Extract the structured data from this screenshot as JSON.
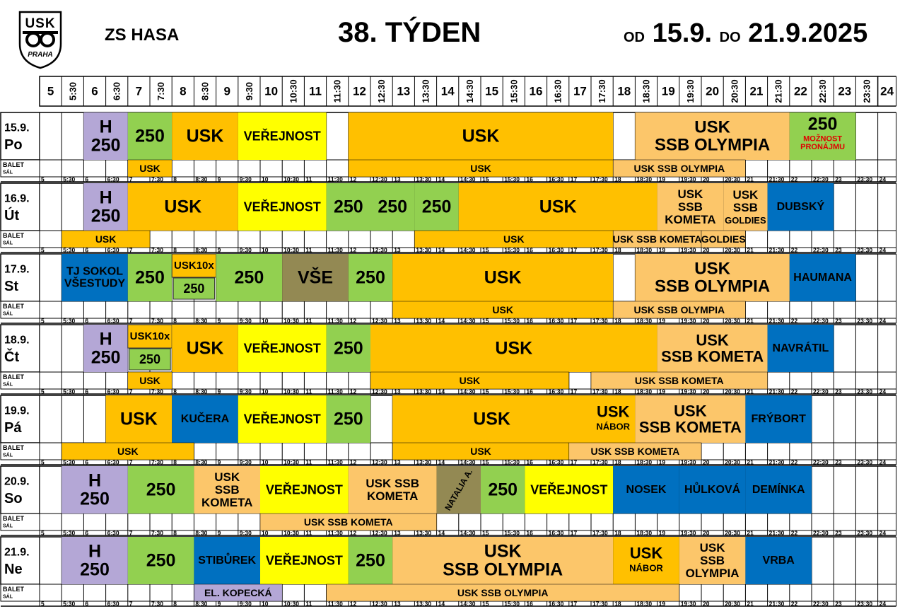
{
  "header": {
    "logo_text": "USK",
    "logo_city": "PRAHA",
    "venue": "ZS HASA",
    "week": "38. TÝDEN",
    "range_from_word": "OD",
    "range_from": "15.9.",
    "range_to_word": "DO",
    "range_to": "21.9.2025"
  },
  "time_labels": [
    "5",
    "5:30",
    "6",
    "6:30",
    "7",
    "7:30",
    "8",
    "8:30",
    "9",
    "9:30",
    "10",
    "10:30",
    "11",
    "11:30",
    "12",
    "12:30",
    "13",
    "13:30",
    "14",
    "14:30",
    "15",
    "15:30",
    "16",
    "16:30",
    "17",
    "17:30",
    "18",
    "18:30",
    "19",
    "19:30",
    "20",
    "20:30",
    "21",
    "21:30",
    "22",
    "22:30",
    "23",
    "23:30",
    "24"
  ],
  "sub_label": [
    "BALET",
    "SÁL"
  ],
  "colors": {
    "lavender": "#b4a7d6",
    "green": "#92d050",
    "orange": "#ffc000",
    "yellow": "#ffff00",
    "peach": "#fcc66a",
    "blue": "#0070c0",
    "olive": "#938953",
    "red": "#e00000"
  },
  "days": [
    {
      "date": "15.9.",
      "name": "Po",
      "main": [
        {
          "s": 2,
          "e": 4,
          "c": "lavender",
          "t": [
            "H",
            "250"
          ],
          "fs": 25
        },
        {
          "s": 4,
          "e": 6,
          "c": "green",
          "t": [
            "250"
          ],
          "fs": 25
        },
        {
          "s": 6,
          "e": 9,
          "c": "orange",
          "t": [
            "USK"
          ],
          "fs": 25
        },
        {
          "s": 9,
          "e": 13,
          "c": "yellow",
          "t": [
            "VEŘEJNOST"
          ],
          "fs": 18
        },
        {
          "s": 14,
          "e": 26,
          "c": "orange",
          "t": [
            "USK"
          ],
          "fs": 25
        },
        {
          "s": 27,
          "e": 34,
          "c": "peach",
          "t": [
            "USK",
            "SSB OLYMPIA"
          ],
          "fs": 24
        },
        {
          "s": 34,
          "e": 37,
          "c": "green",
          "t": [
            "250"
          ],
          "fs": 25,
          "note": [
            "MOŽNOST",
            "PRONÁJMU"
          ]
        }
      ],
      "sub": [
        {
          "s": 4,
          "e": 6,
          "c": "orange",
          "t": "USK"
        },
        {
          "s": 14,
          "e": 26,
          "c": "orange",
          "t": "USK"
        },
        {
          "s": 26,
          "e": 32,
          "c": "peach",
          "t": "USK SSB OLYMPIA"
        }
      ]
    },
    {
      "date": "16.9.",
      "name": "Út",
      "main": [
        {
          "s": 2,
          "e": 4,
          "c": "lavender",
          "t": [
            "H",
            "250"
          ],
          "fs": 25
        },
        {
          "s": 4,
          "e": 9,
          "c": "orange",
          "t": [
            "USK"
          ],
          "fs": 25
        },
        {
          "s": 9,
          "e": 13,
          "c": "yellow",
          "t": [
            "VEŘEJNOST"
          ],
          "fs": 18
        },
        {
          "s": 13,
          "e": 15,
          "c": "green",
          "t": [
            "250"
          ],
          "fs": 25
        },
        {
          "s": 15,
          "e": 17,
          "c": "green",
          "t": [
            "250"
          ],
          "fs": 25
        },
        {
          "s": 17,
          "e": 19,
          "c": "green",
          "t": [
            "250"
          ],
          "fs": 25
        },
        {
          "s": 19,
          "e": 28,
          "c": "orange",
          "t": [
            "USK"
          ],
          "fs": 25
        },
        {
          "s": 28,
          "e": 31,
          "c": "peach",
          "t": [
            "USK",
            "SSB",
            "KOMETA"
          ],
          "fs": 17
        },
        {
          "s": 31,
          "e": 33,
          "c": "peach",
          "t": [
            "USK",
            "SSB"
          ],
          "fs": 17,
          "note": [
            "GOLDIES"
          ]
        },
        {
          "s": 33,
          "e": 36,
          "c": "blue",
          "t": [
            "DUBSKÝ"
          ],
          "fs": 16
        }
      ],
      "sub": [
        {
          "s": 1,
          "e": 5,
          "c": "orange",
          "t": "USK"
        },
        {
          "s": 17,
          "e": 26,
          "c": "orange",
          "t": "USK"
        },
        {
          "s": 26,
          "e": 30,
          "c": "peach",
          "t": "USK SSB KOMETA"
        },
        {
          "s": 30,
          "e": 32,
          "c": "peach",
          "t": "GOLDIES"
        }
      ]
    },
    {
      "date": "17.9.",
      "name": "St",
      "main": [
        {
          "s": 1,
          "e": 4,
          "c": "blue",
          "t": [
            "TJ SOKOL",
            "VŠESTUDY"
          ],
          "fs": 16
        },
        {
          "s": 4,
          "e": 6,
          "c": "green",
          "t": [
            "250"
          ],
          "fs": 25
        },
        {
          "s": 6,
          "e": 8,
          "c": "orange",
          "t": [
            "USK10x"
          ],
          "fs": 15,
          "half": "top"
        },
        {
          "s": 6,
          "e": 8,
          "c": "green",
          "t": [
            "250"
          ],
          "fs": 18,
          "half": "bot"
        },
        {
          "s": 8,
          "e": 11,
          "c": "green",
          "t": [
            "250"
          ],
          "fs": 25
        },
        {
          "s": 11,
          "e": 14,
          "c": "olive",
          "t": [
            "VŠE"
          ],
          "fs": 25
        },
        {
          "s": 14,
          "e": 16,
          "c": "green",
          "t": [
            "250"
          ],
          "fs": 25
        },
        {
          "s": 16,
          "e": 26,
          "c": "orange",
          "t": [
            "USK"
          ],
          "fs": 25
        },
        {
          "s": 27,
          "e": 34,
          "c": "peach",
          "t": [
            "USK",
            "SSB OLYMPIA"
          ],
          "fs": 24
        },
        {
          "s": 34,
          "e": 37,
          "c": "blue",
          "t": [
            "HAUMANA"
          ],
          "fs": 16
        }
      ],
      "sub": [
        {
          "s": 16,
          "e": 26,
          "c": "orange",
          "t": "USK"
        },
        {
          "s": 26,
          "e": 32,
          "c": "peach",
          "t": "USK SSB OLYMPIA"
        }
      ]
    },
    {
      "date": "18.9.",
      "name": "Čt",
      "main": [
        {
          "s": 2,
          "e": 4,
          "c": "lavender",
          "t": [
            "H",
            "250"
          ],
          "fs": 25
        },
        {
          "s": 4,
          "e": 6,
          "c": "orange",
          "t": [
            "USK10x"
          ],
          "fs": 15,
          "half": "top"
        },
        {
          "s": 4,
          "e": 6,
          "c": "green",
          "t": [
            "250"
          ],
          "fs": 18,
          "half": "bot"
        },
        {
          "s": 6,
          "e": 9,
          "c": "orange",
          "t": [
            "USK"
          ],
          "fs": 25
        },
        {
          "s": 9,
          "e": 13,
          "c": "yellow",
          "t": [
            "VEŘEJNOST"
          ],
          "fs": 18
        },
        {
          "s": 13,
          "e": 15,
          "c": "green",
          "t": [
            "250"
          ],
          "fs": 25
        },
        {
          "s": 15,
          "e": 28,
          "c": "orange",
          "t": [
            "USK"
          ],
          "fs": 25
        },
        {
          "s": 28,
          "e": 33,
          "c": "peach",
          "t": [
            "USK",
            "SSB KOMETA"
          ],
          "fs": 22
        },
        {
          "s": 33,
          "e": 36,
          "c": "blue",
          "t": [
            "NAVRÁTIL"
          ],
          "fs": 16
        }
      ],
      "sub": [
        {
          "s": 4,
          "e": 6,
          "c": "orange",
          "t": "USK"
        },
        {
          "s": 15,
          "e": 24,
          "c": "orange",
          "t": "USK"
        },
        {
          "s": 25,
          "e": 33,
          "c": "peach",
          "t": "USK SSB KOMETA"
        }
      ]
    },
    {
      "date": "19.9.",
      "name": "Pá",
      "main": [
        {
          "s": 3,
          "e": 6,
          "c": "orange",
          "t": [
            "USK"
          ],
          "fs": 25
        },
        {
          "s": 6,
          "e": 9,
          "c": "blue",
          "t": [
            "KUČERA"
          ],
          "fs": 16
        },
        {
          "s": 9,
          "e": 13,
          "c": "yellow",
          "t": [
            "VEŘEJNOST"
          ],
          "fs": 18
        },
        {
          "s": 13,
          "e": 15,
          "c": "green",
          "t": [
            "250"
          ],
          "fs": 25
        },
        {
          "s": 16,
          "e": 25,
          "c": "orange",
          "t": [
            "USK"
          ],
          "fs": 25
        },
        {
          "s": 25,
          "e": 27,
          "c": "orange",
          "t": [
            "USK"
          ],
          "fs": 22,
          "note": [
            "NÁBOR"
          ]
        },
        {
          "s": 27,
          "e": 32,
          "c": "peach",
          "t": [
            "USK",
            "SSB KOMETA"
          ],
          "fs": 22
        },
        {
          "s": 32,
          "e": 35,
          "c": "blue",
          "t": [
            "FRÝBORT"
          ],
          "fs": 16
        }
      ],
      "sub": [
        {
          "s": 1,
          "e": 7,
          "c": "orange",
          "t": "USK"
        },
        {
          "s": 16,
          "e": 24,
          "c": "orange",
          "t": "USK"
        },
        {
          "s": 24,
          "e": 30,
          "c": "peach",
          "t": "USK SSB KOMETA"
        }
      ]
    },
    {
      "date": "20.9.",
      "name": "So",
      "main": [
        {
          "s": 1,
          "e": 4,
          "c": "lavender",
          "t": [
            "H",
            "250"
          ],
          "fs": 25
        },
        {
          "s": 4,
          "e": 7,
          "c": "green",
          "t": [
            "250"
          ],
          "fs": 25
        },
        {
          "s": 7,
          "e": 10,
          "c": "peach",
          "t": [
            "USK",
            "SSB",
            "KOMETA"
          ],
          "fs": 17
        },
        {
          "s": 10,
          "e": 14,
          "c": "yellow",
          "t": [
            "VEŘEJNOST"
          ],
          "fs": 18
        },
        {
          "s": 14,
          "e": 18,
          "c": "peach",
          "t": [
            "USK SSB",
            "KOMETA"
          ],
          "fs": 17
        },
        {
          "s": 18,
          "e": 20,
          "c": "olive",
          "t": [
            "NATALIA A."
          ],
          "fs": 12,
          "rot": true
        },
        {
          "s": 20,
          "e": 22,
          "c": "green",
          "t": [
            "250"
          ],
          "fs": 25
        },
        {
          "s": 22,
          "e": 26,
          "c": "yellow",
          "t": [
            "VEŘEJNOST"
          ],
          "fs": 18
        },
        {
          "s": 26,
          "e": 29,
          "c": "blue",
          "t": [
            "NOSEK"
          ],
          "fs": 16
        },
        {
          "s": 29,
          "e": 32,
          "c": "blue",
          "t": [
            "HŮLKOVÁ"
          ],
          "fs": 16
        },
        {
          "s": 32,
          "e": 35,
          "c": "blue",
          "t": [
            "DEMÍNKA"
          ],
          "fs": 16
        }
      ],
      "sub": [
        {
          "s": 10,
          "e": 18,
          "c": "peach",
          "t": "USK SSB KOMETA"
        }
      ]
    },
    {
      "date": "21.9.",
      "name": "Ne",
      "main": [
        {
          "s": 1,
          "e": 4,
          "c": "lavender",
          "t": [
            "H",
            "250"
          ],
          "fs": 25
        },
        {
          "s": 4,
          "e": 7,
          "c": "green",
          "t": [
            "250"
          ],
          "fs": 25
        },
        {
          "s": 7,
          "e": 10,
          "c": "blue",
          "t": [
            "STIBŮREK"
          ],
          "fs": 16
        },
        {
          "s": 10,
          "e": 14,
          "c": "yellow",
          "t": [
            "VEŘEJNOST"
          ],
          "fs": 18
        },
        {
          "s": 14,
          "e": 16,
          "c": "green",
          "t": [
            "250"
          ],
          "fs": 25
        },
        {
          "s": 16,
          "e": 26,
          "c": "peach",
          "t": [
            "USK",
            "SSB OLYMPIA"
          ],
          "fs": 25
        },
        {
          "s": 26,
          "e": 29,
          "c": "orange",
          "t": [
            "USK"
          ],
          "fs": 22,
          "note": [
            "NÁBOR"
          ]
        },
        {
          "s": 29,
          "e": 32,
          "c": "peach",
          "t": [
            "USK",
            "SSB",
            "OLYMPIA"
          ],
          "fs": 17
        },
        {
          "s": 32,
          "e": 35,
          "c": "blue",
          "t": [
            "VRBA"
          ],
          "fs": 16
        }
      ],
      "sub": [
        {
          "s": 7,
          "e": 11,
          "c": "lavender",
          "t": "EL. KOPECKÁ"
        },
        {
          "s": 13,
          "e": 29,
          "c": "peach",
          "t": "USK SSB OLYMPIA"
        }
      ]
    }
  ]
}
